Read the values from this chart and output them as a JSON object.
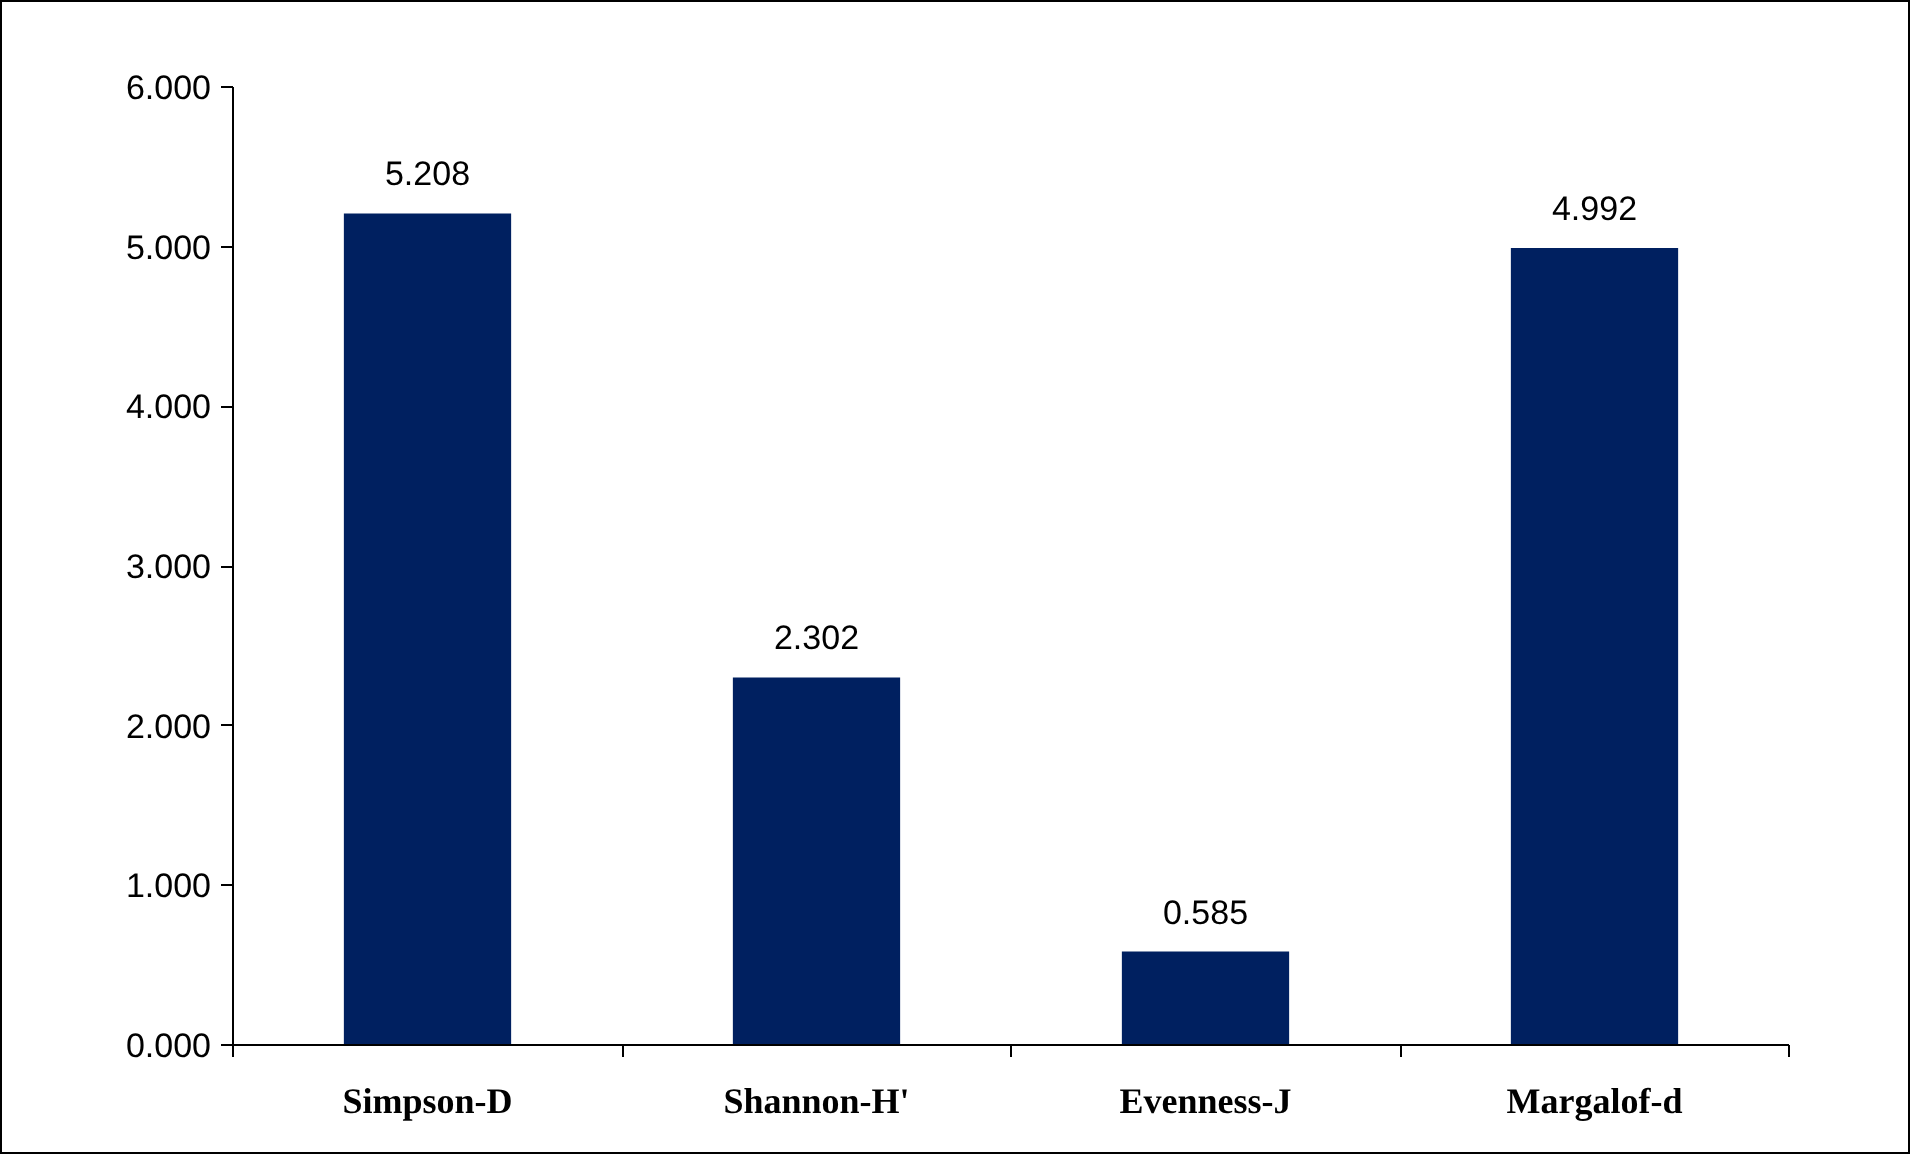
{
  "chart_data": {
    "type": "bar",
    "categories": [
      "Simpson-D",
      "Shannon-H'",
      "Evenness-J",
      "Margalof-d"
    ],
    "values": [
      5.208,
      2.302,
      0.585,
      4.992
    ],
    "color": "#002060",
    "data_labels": true,
    "grid": false,
    "ylim": [
      0,
      6
    ],
    "yticks": [
      {
        "value": 0,
        "label": "0.000"
      },
      {
        "value": 1,
        "label": "1.000"
      },
      {
        "value": 2,
        "label": "2.000"
      },
      {
        "value": 3,
        "label": "3.000"
      },
      {
        "value": 4,
        "label": "4.000"
      },
      {
        "value": 5,
        "label": "5.000"
      },
      {
        "value": 6,
        "label": "6.000"
      }
    ]
  }
}
